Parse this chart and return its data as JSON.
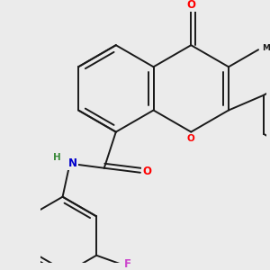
{
  "background_color": "#ebebeb",
  "bond_color": "#1a1a1a",
  "atom_colors": {
    "O": "#ff0000",
    "N": "#0000cc",
    "F": "#cc44cc",
    "C": "#1a1a1a",
    "H": "#3a8a3a"
  },
  "scale": 0.48
}
